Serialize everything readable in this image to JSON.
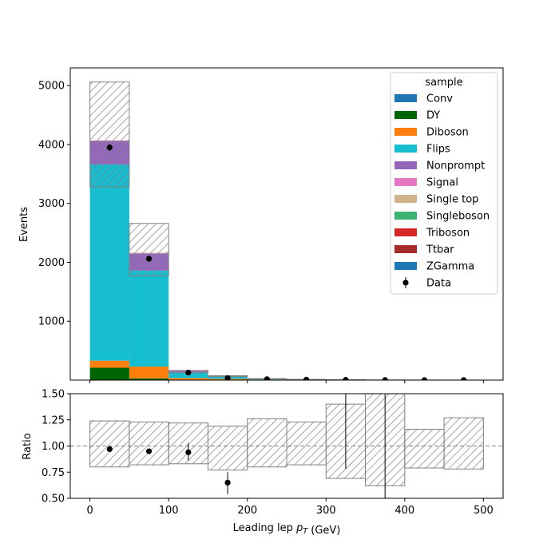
{
  "chart_data": [
    {
      "type": "bar",
      "stacked": true,
      "xlabel": "Leading lep $p_T$ (GeV)",
      "ylabel": "Events",
      "bin_edges": [
        0,
        50,
        100,
        150,
        200,
        250,
        300,
        350,
        400,
        450,
        500
      ],
      "xlim": [
        -25,
        525
      ],
      "ylim": [
        0,
        5300
      ],
      "yticks": [
        1000,
        2000,
        3000,
        4000,
        5000
      ],
      "legend": {
        "title": "sample",
        "placement": "top-right"
      },
      "series": [
        {
          "name": "Conv",
          "color": "#1f77b4",
          "values": [
            0,
            0,
            0,
            0,
            0,
            0,
            0,
            0,
            0,
            0
          ]
        },
        {
          "name": "DY",
          "color": "#006400",
          "values": [
            210,
            30,
            5,
            2,
            1,
            0,
            0,
            0,
            0,
            0
          ]
        },
        {
          "name": "Diboson",
          "color": "#ff7f0e",
          "values": [
            120,
            200,
            30,
            20,
            8,
            4,
            2,
            1,
            1,
            0
          ]
        },
        {
          "name": "Flips",
          "color": "#17becf",
          "values": [
            3330,
            1630,
            100,
            45,
            12,
            5,
            2,
            1,
            0,
            0
          ]
        },
        {
          "name": "Nonprompt",
          "color": "#9467bd",
          "values": [
            400,
            290,
            20,
            8,
            3,
            1,
            1,
            0,
            0,
            0
          ]
        },
        {
          "name": "Signal",
          "color": "#e377c2",
          "values": [
            0,
            0,
            0,
            0,
            0,
            0,
            0,
            0,
            0,
            0
          ]
        },
        {
          "name": "Single top",
          "color": "#d2b48c",
          "values": [
            5,
            5,
            2,
            1,
            0,
            0,
            0,
            0,
            0,
            0
          ]
        },
        {
          "name": "Singleboson",
          "color": "#3cb371",
          "values": [
            0,
            0,
            0,
            0,
            0,
            0,
            0,
            0,
            0,
            0
          ]
        },
        {
          "name": "Triboson",
          "color": "#d62728",
          "values": [
            0,
            0,
            0,
            0,
            0,
            0,
            0,
            0,
            0,
            0
          ]
        },
        {
          "name": "Ttbar",
          "color": "#a52a2a",
          "values": [
            3,
            3,
            1,
            1,
            0,
            0,
            0,
            0,
            0,
            0
          ]
        },
        {
          "name": "ZGamma",
          "color": "#1f77b4",
          "values": [
            0,
            0,
            0,
            0,
            0,
            0,
            0,
            0,
            0,
            0
          ]
        }
      ],
      "uncertainty_band": {
        "low": [
          3280,
          1770,
          125,
          60,
          20,
          8,
          5,
          2,
          1,
          0
        ],
        "high": [
          5060,
          2660,
          165,
          75,
          26,
          12,
          7,
          3,
          2,
          1
        ]
      },
      "data": {
        "name": "Data",
        "x": [
          25,
          75,
          125,
          175,
          225,
          275,
          325,
          375,
          425,
          475
        ],
        "y": [
          3950,
          2060,
          128,
          35,
          16,
          8,
          5,
          2,
          1,
          1
        ]
      }
    },
    {
      "type": "scatter",
      "xlabel": "Leading lep $p_T$ (GeV)",
      "ylabel": "Ratio",
      "xlim": [
        -25,
        525
      ],
      "ylim": [
        0.5,
        1.5
      ],
      "xticks": [
        0,
        100,
        200,
        300,
        400,
        500
      ],
      "yticks": [
        0.5,
        0.75,
        1.0,
        1.25,
        1.5
      ],
      "ytick_labels": [
        "0.50",
        "0.75",
        "1.00",
        "1.25",
        "1.50"
      ],
      "reference_line": 1.0,
      "band": {
        "low": [
          0.8,
          0.82,
          0.83,
          0.77,
          0.8,
          0.82,
          0.69,
          0.62,
          0.79,
          0.78
        ],
        "high": [
          1.24,
          1.23,
          1.22,
          1.19,
          1.26,
          1.23,
          1.4,
          1.5,
          1.16,
          1.27
        ]
      },
      "points": {
        "x": [
          25,
          75,
          125,
          175,
          325,
          375
        ],
        "y": [
          0.97,
          0.95,
          0.94,
          0.65,
          null,
          null
        ],
        "err_low": [
          0.97,
          0.95,
          0.86,
          0.54,
          0.78,
          0.5
        ],
        "err_high": [
          0.97,
          0.95,
          1.03,
          0.75,
          1.5,
          1.5
        ]
      }
    }
  ]
}
